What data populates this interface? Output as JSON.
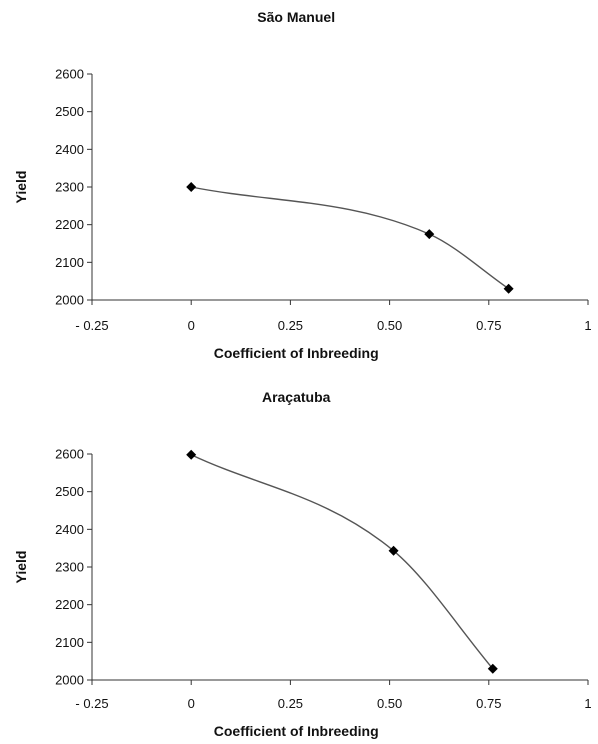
{
  "chart_data": [
    {
      "type": "line",
      "title": "São Manuel",
      "xlabel": "Coefficient of  Inbreeding",
      "ylabel": "Yield",
      "xlim": [
        -0.25,
        1
      ],
      "ylim": [
        2000,
        2600
      ],
      "x_ticks": [
        "- 0.25",
        "0",
        "0.25",
        "0.50",
        "0.75",
        "1"
      ],
      "y_ticks": [
        "2000",
        "2100",
        "2200",
        "2300",
        "2400",
        "2500",
        "2600"
      ],
      "smoothed": true,
      "marker": "diamond",
      "series": [
        {
          "x": [
            0,
            0.6,
            0.8
          ],
          "y": [
            2300,
            2175,
            2030
          ]
        }
      ]
    },
    {
      "type": "line",
      "title": "Araçatuba",
      "xlabel": "Coefficient of Inbreeding",
      "ylabel": "Yield",
      "xlim": [
        -0.25,
        1
      ],
      "ylim": [
        2000,
        2600
      ],
      "x_ticks": [
        "- 0.25",
        "0",
        "0.25",
        "0.50",
        "0.75",
        "1"
      ],
      "y_ticks": [
        "2000",
        "2100",
        "2200",
        "2300",
        "2400",
        "2500",
        "2600"
      ],
      "smoothed": true,
      "marker": "diamond",
      "series": [
        {
          "x": [
            0,
            0.51,
            0.76
          ],
          "y": [
            2598,
            2343,
            2030
          ]
        }
      ]
    }
  ]
}
